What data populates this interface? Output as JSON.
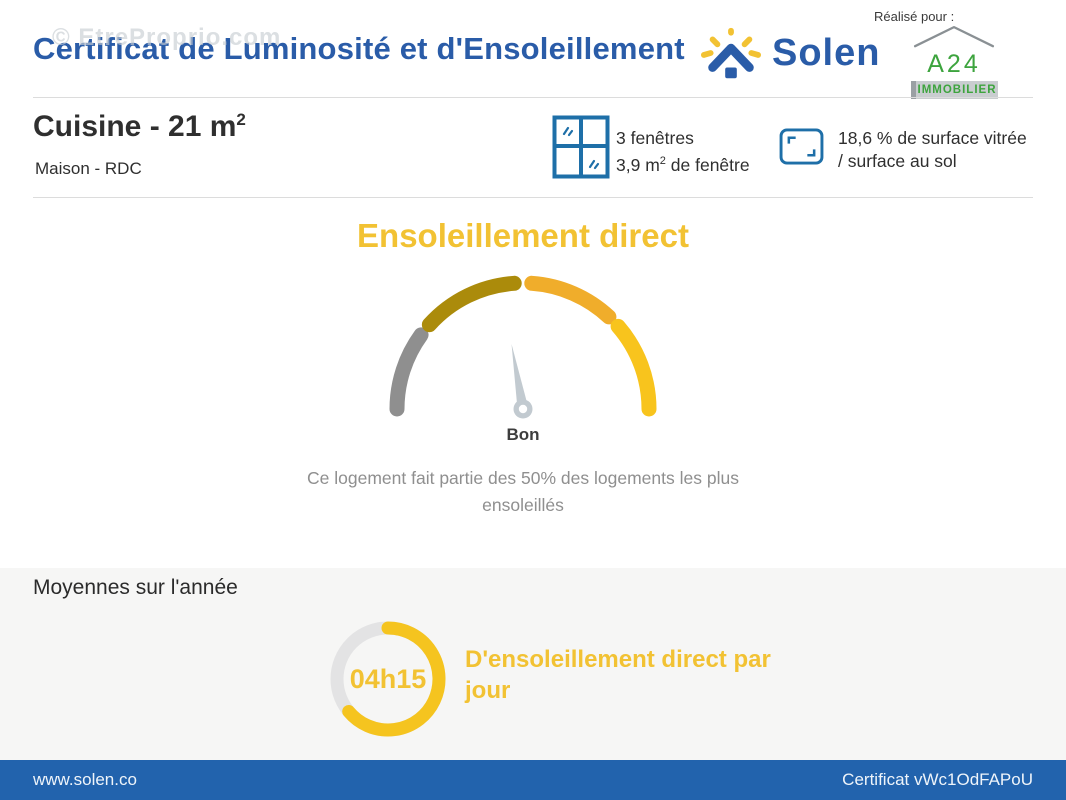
{
  "watermark": "© EtreProprio.com",
  "header": {
    "title": "Certificat de Luminosité et d'Ensoleillement",
    "brand": "Solen",
    "realise_pour": "Réalisé pour :",
    "agency_name": "A24",
    "agency_sub": "IMMOBILIER"
  },
  "room": {
    "name": "Cuisine - 21 m",
    "area_sup": "2",
    "subtitle": "Maison - RDC",
    "windows_count": "3 fenêtres",
    "windows_area_pre": "3,9 m",
    "windows_area_sup": "2",
    "windows_area_post": " de fenêtre",
    "glazing_line1": "18,6 % de surface vitrée",
    "glazing_line2": "/ surface au sol"
  },
  "gauge_section": {
    "title": "Ensoleillement direct",
    "reading": "Bon",
    "description": "Ce logement fait partie des 50% des logements les plus ensoleillés"
  },
  "averages": {
    "title": "Moyennes sur l'année",
    "ring_value": "04h15",
    "ring_label": "D'ensoleillement direct par jour"
  },
  "footer": {
    "left": "www.solen.co",
    "right": "Certificat vWc1OdFAPoU"
  },
  "colors": {
    "brand_blue": "#2a5ca8",
    "icon_blue": "#1e6fa8",
    "accent_yellow": "#f2c233",
    "footer_blue": "#2263ad",
    "agency_green": "#3da43e",
    "section_bg": "#f6f6f5",
    "muted_gray": "#8f8f8f"
  },
  "chart_data": [
    {
      "type": "gauge",
      "title": "Ensoleillement direct",
      "reading": "Bon",
      "annotation": "Ce logement fait partie des 50% des logements les plus ensoleillés",
      "segments": [
        {
          "name": "low",
          "color": "#8f8f8f",
          "start_deg": 180,
          "end_deg": 144
        },
        {
          "name": "medium-low",
          "color": "#ab8b0b",
          "start_deg": 138,
          "end_deg": 94
        },
        {
          "name": "medium-high",
          "color": "#f0ad2b",
          "start_deg": 86,
          "end_deg": 47
        },
        {
          "name": "high",
          "color": "#f8c41d",
          "start_deg": 41,
          "end_deg": 0
        }
      ],
      "needle_deg": 100,
      "needle_color": "#c2cad0"
    },
    {
      "type": "donut",
      "value_label": "04h15",
      "label": "D'ensoleillement direct par jour",
      "fraction_filled": 0.64,
      "fill_color": "#f5c41f",
      "track_color": "#e3e3e4"
    }
  ]
}
